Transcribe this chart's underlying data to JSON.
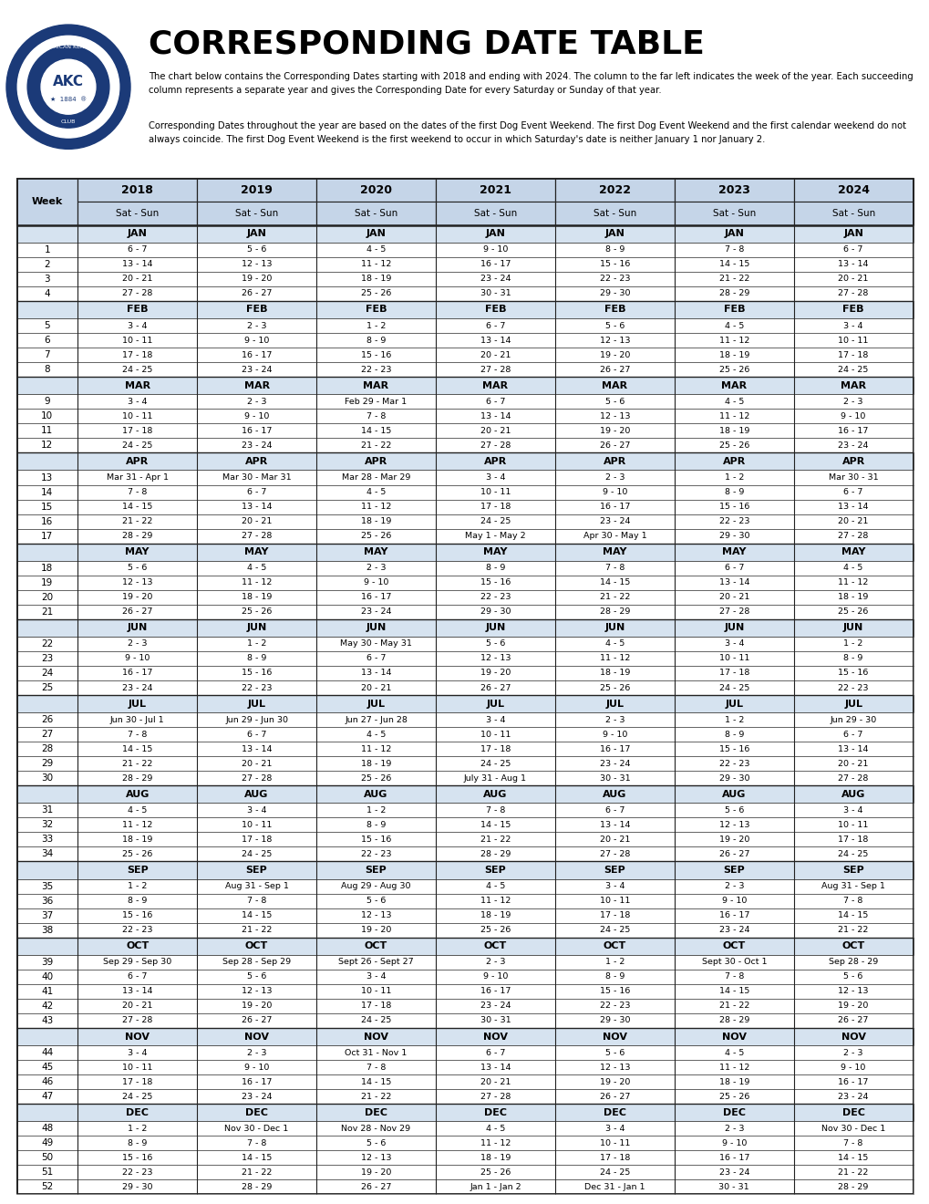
{
  "title": "CORRESPONDING DATE TABLE",
  "subtitle1": "The chart below contains the Corresponding Dates starting with 2018 and ending with 2024. The column to the far left indicates the week of the year. Each succeeding column represents a separate year and gives the Corresponding Date for every Saturday or Sunday of that year.",
  "subtitle2": "Corresponding Dates throughout the year are based on the dates of the first Dog Event Weekend. The first Dog Event Weekend and the first calendar weekend do not always coincide. The first Dog Event Weekend is the first weekend to occur in which Saturday's date is neither January 1 nor January 2.",
  "years": [
    "2018",
    "2019",
    "2020",
    "2021",
    "2022",
    "2023",
    "2024"
  ],
  "header_bg": "#c5d5e8",
  "month_row_bg": "#d6e3f0",
  "data_row_bg": "#ffffff",
  "border_color": "#222222",
  "table_data": [
    {
      "month": "JAN",
      "weeks": [
        {
          "week": 1,
          "vals": [
            "6 - 7",
            "5 - 6",
            "4 - 5",
            "9 - 10",
            "8 - 9",
            "7 - 8",
            "6 - 7"
          ]
        },
        {
          "week": 2,
          "vals": [
            "13 - 14",
            "12 - 13",
            "11 - 12",
            "16 - 17",
            "15 - 16",
            "14 - 15",
            "13 - 14"
          ]
        },
        {
          "week": 3,
          "vals": [
            "20 - 21",
            "19 - 20",
            "18 - 19",
            "23 - 24",
            "22 - 23",
            "21 - 22",
            "20 - 21"
          ]
        },
        {
          "week": 4,
          "vals": [
            "27 - 28",
            "26 - 27",
            "25 - 26",
            "30 - 31",
            "29 - 30",
            "28 - 29",
            "27 - 28"
          ]
        }
      ]
    },
    {
      "month": "FEB",
      "weeks": [
        {
          "week": 5,
          "vals": [
            "3 - 4",
            "2 - 3",
            "1 - 2",
            "6 - 7",
            "5 - 6",
            "4 - 5",
            "3 - 4"
          ]
        },
        {
          "week": 6,
          "vals": [
            "10 - 11",
            "9 - 10",
            "8 - 9",
            "13 - 14",
            "12 - 13",
            "11 - 12",
            "10 - 11"
          ]
        },
        {
          "week": 7,
          "vals": [
            "17 - 18",
            "16 - 17",
            "15 - 16",
            "20 - 21",
            "19 - 20",
            "18 - 19",
            "17 - 18"
          ]
        },
        {
          "week": 8,
          "vals": [
            "24 - 25",
            "23 - 24",
            "22 - 23",
            "27 - 28",
            "26 - 27",
            "25 - 26",
            "24 - 25"
          ]
        }
      ]
    },
    {
      "month": "MAR",
      "weeks": [
        {
          "week": 9,
          "vals": [
            "3 - 4",
            "2 - 3",
            "Feb 29 - Mar 1",
            "6 - 7",
            "5 - 6",
            "4 - 5",
            "2 - 3"
          ]
        },
        {
          "week": 10,
          "vals": [
            "10 - 11",
            "9 - 10",
            "7 - 8",
            "13 - 14",
            "12 - 13",
            "11 - 12",
            "9 - 10"
          ]
        },
        {
          "week": 11,
          "vals": [
            "17 - 18",
            "16 - 17",
            "14 - 15",
            "20 - 21",
            "19 - 20",
            "18 - 19",
            "16 - 17"
          ]
        },
        {
          "week": 12,
          "vals": [
            "24 - 25",
            "23 - 24",
            "21 - 22",
            "27 - 28",
            "26 - 27",
            "25 - 26",
            "23 - 24"
          ]
        }
      ]
    },
    {
      "month": "APR",
      "weeks": [
        {
          "week": 13,
          "vals": [
            "Mar 31 - Apr 1",
            "Mar 30 - Mar 31",
            "Mar 28 - Mar 29",
            "3 - 4",
            "2 - 3",
            "1 - 2",
            "Mar 30 - 31"
          ]
        },
        {
          "week": 14,
          "vals": [
            "7 - 8",
            "6 - 7",
            "4 - 5",
            "10 - 11",
            "9 - 10",
            "8 - 9",
            "6 - 7"
          ]
        },
        {
          "week": 15,
          "vals": [
            "14 - 15",
            "13 - 14",
            "11 - 12",
            "17 - 18",
            "16 - 17",
            "15 - 16",
            "13 - 14"
          ]
        },
        {
          "week": 16,
          "vals": [
            "21 - 22",
            "20 - 21",
            "18 - 19",
            "24 - 25",
            "23 - 24",
            "22 - 23",
            "20 - 21"
          ]
        },
        {
          "week": 17,
          "vals": [
            "28 - 29",
            "27 - 28",
            "25 - 26",
            "May 1 - May 2",
            "Apr 30 - May 1",
            "29 - 30",
            "27 - 28"
          ]
        }
      ]
    },
    {
      "month": "MAY",
      "weeks": [
        {
          "week": 18,
          "vals": [
            "5 - 6",
            "4 - 5",
            "2 - 3",
            "8 - 9",
            "7 - 8",
            "6 - 7",
            "4 - 5"
          ]
        },
        {
          "week": 19,
          "vals": [
            "12 - 13",
            "11 - 12",
            "9 - 10",
            "15 - 16",
            "14 - 15",
            "13 - 14",
            "11 - 12"
          ]
        },
        {
          "week": 20,
          "vals": [
            "19 - 20",
            "18 - 19",
            "16 - 17",
            "22 - 23",
            "21 - 22",
            "20 - 21",
            "18 - 19"
          ]
        },
        {
          "week": 21,
          "vals": [
            "26 - 27",
            "25 - 26",
            "23 - 24",
            "29 - 30",
            "28 - 29",
            "27 - 28",
            "25 - 26"
          ]
        }
      ]
    },
    {
      "month": "JUN",
      "weeks": [
        {
          "week": 22,
          "vals": [
            "2 - 3",
            "1 - 2",
            "May 30 - May 31",
            "5 - 6",
            "4 - 5",
            "3 - 4",
            "1 - 2"
          ]
        },
        {
          "week": 23,
          "vals": [
            "9 - 10",
            "8 - 9",
            "6 - 7",
            "12 - 13",
            "11 - 12",
            "10 - 11",
            "8 - 9"
          ]
        },
        {
          "week": 24,
          "vals": [
            "16 - 17",
            "15 - 16",
            "13 - 14",
            "19 - 20",
            "18 - 19",
            "17 - 18",
            "15 - 16"
          ]
        },
        {
          "week": 25,
          "vals": [
            "23 - 24",
            "22 - 23",
            "20 - 21",
            "26 - 27",
            "25 - 26",
            "24 - 25",
            "22 - 23"
          ]
        }
      ]
    },
    {
      "month": "JUL",
      "weeks": [
        {
          "week": 26,
          "vals": [
            "Jun 30 - Jul 1",
            "Jun 29 - Jun 30",
            "Jun 27 - Jun 28",
            "3 - 4",
            "2 - 3",
            "1 - 2",
            "Jun 29 - 30"
          ]
        },
        {
          "week": 27,
          "vals": [
            "7 - 8",
            "6 - 7",
            "4 - 5",
            "10 - 11",
            "9 - 10",
            "8 - 9",
            "6 - 7"
          ]
        },
        {
          "week": 28,
          "vals": [
            "14 - 15",
            "13 - 14",
            "11 - 12",
            "17 - 18",
            "16 - 17",
            "15 - 16",
            "13 - 14"
          ]
        },
        {
          "week": 29,
          "vals": [
            "21 - 22",
            "20 - 21",
            "18 - 19",
            "24 - 25",
            "23 - 24",
            "22 - 23",
            "20 - 21"
          ]
        },
        {
          "week": 30,
          "vals": [
            "28 - 29",
            "27 - 28",
            "25 - 26",
            "July 31 - Aug 1",
            "30 - 31",
            "29 - 30",
            "27 - 28"
          ]
        }
      ]
    },
    {
      "month": "AUG",
      "weeks": [
        {
          "week": 31,
          "vals": [
            "4 - 5",
            "3 - 4",
            "1 - 2",
            "7 - 8",
            "6 - 7",
            "5 - 6",
            "3 - 4"
          ]
        },
        {
          "week": 32,
          "vals": [
            "11 - 12",
            "10 - 11",
            "8 - 9",
            "14 - 15",
            "13 - 14",
            "12 - 13",
            "10 - 11"
          ]
        },
        {
          "week": 33,
          "vals": [
            "18 - 19",
            "17 - 18",
            "15 - 16",
            "21 - 22",
            "20 - 21",
            "19 - 20",
            "17 - 18"
          ]
        },
        {
          "week": 34,
          "vals": [
            "25 - 26",
            "24 - 25",
            "22 - 23",
            "28 - 29",
            "27 - 28",
            "26 - 27",
            "24 - 25"
          ]
        }
      ]
    },
    {
      "month": "SEP",
      "weeks": [
        {
          "week": 35,
          "vals": [
            "1 - 2",
            "Aug 31 - Sep 1",
            "Aug 29 - Aug 30",
            "4 - 5",
            "3 - 4",
            "2 - 3",
            "Aug 31 - Sep 1"
          ]
        },
        {
          "week": 36,
          "vals": [
            "8 - 9",
            "7 - 8",
            "5 - 6",
            "11 - 12",
            "10 - 11",
            "9 - 10",
            "7 - 8"
          ]
        },
        {
          "week": 37,
          "vals": [
            "15 - 16",
            "14 - 15",
            "12 - 13",
            "18 - 19",
            "17 - 18",
            "16 - 17",
            "14 - 15"
          ]
        },
        {
          "week": 38,
          "vals": [
            "22 - 23",
            "21 - 22",
            "19 - 20",
            "25 - 26",
            "24 - 25",
            "23 - 24",
            "21 - 22"
          ]
        }
      ]
    },
    {
      "month": "OCT",
      "weeks": [
        {
          "week": 39,
          "vals": [
            "Sep 29 - Sep 30",
            "Sep 28 - Sep 29",
            "Sept 26 - Sept 27",
            "2 - 3",
            "1 - 2",
            "Sept 30 - Oct 1",
            "Sep 28 - 29"
          ]
        },
        {
          "week": 40,
          "vals": [
            "6 - 7",
            "5 - 6",
            "3 - 4",
            "9 - 10",
            "8 - 9",
            "7 - 8",
            "5 - 6"
          ]
        },
        {
          "week": 41,
          "vals": [
            "13 - 14",
            "12 - 13",
            "10 - 11",
            "16 - 17",
            "15 - 16",
            "14 - 15",
            "12 - 13"
          ]
        },
        {
          "week": 42,
          "vals": [
            "20 - 21",
            "19 - 20",
            "17 - 18",
            "23 - 24",
            "22 - 23",
            "21 - 22",
            "19 - 20"
          ]
        },
        {
          "week": 43,
          "vals": [
            "27 - 28",
            "26 - 27",
            "24 - 25",
            "30 - 31",
            "29 - 30",
            "28 - 29",
            "26 - 27"
          ]
        }
      ]
    },
    {
      "month": "NOV",
      "weeks": [
        {
          "week": 44,
          "vals": [
            "3 - 4",
            "2 - 3",
            "Oct 31 - Nov 1",
            "6 - 7",
            "5 - 6",
            "4 - 5",
            "2 - 3"
          ]
        },
        {
          "week": 45,
          "vals": [
            "10 - 11",
            "9 - 10",
            "7 - 8",
            "13 - 14",
            "12 - 13",
            "11 - 12",
            "9 - 10"
          ]
        },
        {
          "week": 46,
          "vals": [
            "17 - 18",
            "16 - 17",
            "14 - 15",
            "20 - 21",
            "19 - 20",
            "18 - 19",
            "16 - 17"
          ]
        },
        {
          "week": 47,
          "vals": [
            "24 - 25",
            "23 - 24",
            "21 - 22",
            "27 - 28",
            "26 - 27",
            "25 - 26",
            "23 - 24"
          ]
        }
      ]
    },
    {
      "month": "DEC",
      "weeks": [
        {
          "week": 48,
          "vals": [
            "1 - 2",
            "Nov 30 - Dec 1",
            "Nov 28 - Nov 29",
            "4 - 5",
            "3 - 4",
            "2 - 3",
            "Nov 30 - Dec 1"
          ]
        },
        {
          "week": 49,
          "vals": [
            "8 - 9",
            "7 - 8",
            "5 - 6",
            "11 - 12",
            "10 - 11",
            "9 - 10",
            "7 - 8"
          ]
        },
        {
          "week": 50,
          "vals": [
            "15 - 16",
            "14 - 15",
            "12 - 13",
            "18 - 19",
            "17 - 18",
            "16 - 17",
            "14 - 15"
          ]
        },
        {
          "week": 51,
          "vals": [
            "22 - 23",
            "21 - 22",
            "19 - 20",
            "25 - 26",
            "24 - 25",
            "23 - 24",
            "21 - 22"
          ]
        },
        {
          "week": 52,
          "vals": [
            "29 - 30",
            "28 - 29",
            "26 - 27",
            "Jan 1 - Jan 2",
            "Dec 31 - Jan 1",
            "30 - 31",
            "28 - 29"
          ]
        }
      ]
    }
  ]
}
